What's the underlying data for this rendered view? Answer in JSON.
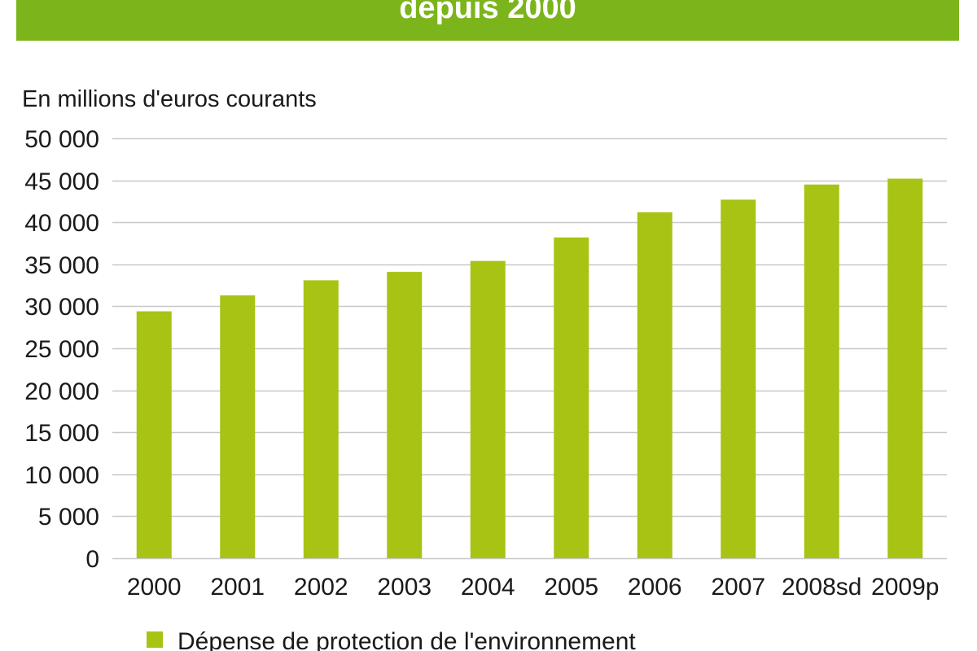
{
  "chart_data": {
    "type": "bar",
    "title": "depuis 2000",
    "xlabel": "",
    "ylabel": "En millions d'euros courants",
    "categories": [
      "2000",
      "2001",
      "2002",
      "2003",
      "2004",
      "2005",
      "2006",
      "2007",
      "2008sd",
      "2009p"
    ],
    "series": [
      {
        "name": "Dépense de protection de l'environnement",
        "values": [
          29400,
          31300,
          33100,
          34100,
          35400,
          38200,
          41200,
          42700,
          44500,
          45200
        ]
      }
    ],
    "ylim": [
      0,
      50000
    ],
    "yticks": [
      0,
      5000,
      10000,
      15000,
      20000,
      25000,
      30000,
      35000,
      40000,
      45000,
      50000
    ],
    "ytick_labels": [
      "0",
      "5 000",
      "10 000",
      "15 000",
      "20 000",
      "25 000",
      "30 000",
      "35 000",
      "40 000",
      "45 000",
      "50 000"
    ],
    "grid": true,
    "legend": "bottom-left",
    "colors": {
      "banner": "#7cb41c",
      "bar": "#a8c313",
      "grid": "#c8c8c8"
    }
  }
}
